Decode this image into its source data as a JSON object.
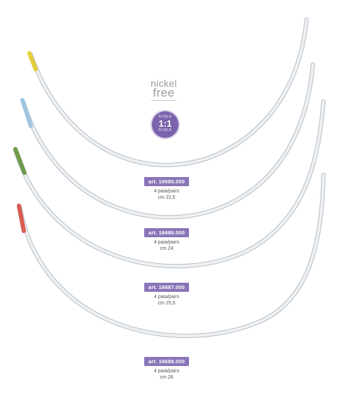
{
  "badges": {
    "nickel_line1": "nickel",
    "nickel_line2": "free",
    "scale_top": "SCALE",
    "scale_value": "1:1",
    "scale_bottom": "SCALE"
  },
  "products": [
    {
      "art": "art. 16685.000",
      "qty": "4 paia/pairs",
      "size": "cm 22,5",
      "tip_color": "#e3cf3a"
    },
    {
      "art": "art. 16686.000",
      "qty": "4 paia/pairs",
      "size": "cm 24",
      "tip_color": "#9fc4e0"
    },
    {
      "art": "art. 16687.000",
      "qty": "4 paia/pairs",
      "size": "cm 25,5",
      "tip_color": "#6f9a4c"
    },
    {
      "art": "art. 16688.000",
      "qty": "4 paia/pairs",
      "size": "cm 26",
      "tip_color": "#d95a4f"
    }
  ],
  "colors": {
    "wire": "#e9ecef",
    "wire_edge": "#b5bcc3",
    "accent": "#8a75b8"
  }
}
